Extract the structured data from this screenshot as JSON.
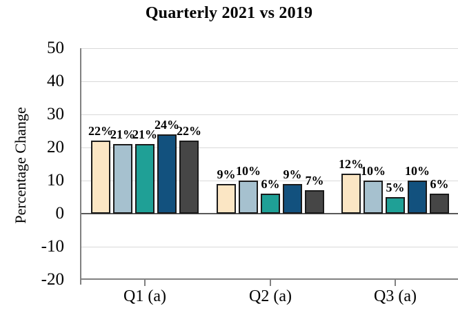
{
  "chart_data": {
    "type": "bar",
    "title": "Quarterly 2021 vs 2019",
    "ylabel": "Percentage Change",
    "xlabel": "",
    "categories": [
      "Q1 (a)",
      "Q2 (a)",
      "Q3 (a)"
    ],
    "series": [
      {
        "name": "series-1",
        "color": "#FBE6C4",
        "values": [
          22,
          9,
          12
        ]
      },
      {
        "name": "series-2",
        "color": "#A6C1CF",
        "values": [
          21,
          10,
          10
        ]
      },
      {
        "name": "series-3",
        "color": "#1FA096",
        "values": [
          21,
          6,
          5
        ]
      },
      {
        "name": "series-4",
        "color": "#12517E",
        "values": [
          24,
          9,
          10
        ]
      },
      {
        "name": "series-5",
        "color": "#464646",
        "values": [
          22,
          7,
          6
        ]
      }
    ],
    "data_label_suffix": "%",
    "data_labels": [
      [
        "22%",
        "9%",
        "12%"
      ],
      [
        "21%",
        "10%",
        "10%"
      ],
      [
        "21%",
        "6%",
        "5%"
      ],
      [
        "24%",
        "9%",
        "10%"
      ],
      [
        "22%",
        "7%",
        "6%"
      ]
    ],
    "ylim": [
      -20,
      50
    ],
    "yticks": [
      50,
      40,
      30,
      20,
      10,
      0,
      -10,
      -20
    ],
    "ytick_step": 10,
    "grid": true,
    "legend": "none",
    "style": {
      "background": "#FFFFFF",
      "gridline_color": "#D9D9D9",
      "zero_line_color": "#595959",
      "axis_line_color": "#808080",
      "bar_border_color": "#1A1A1A",
      "text_color": "#000000"
    }
  }
}
